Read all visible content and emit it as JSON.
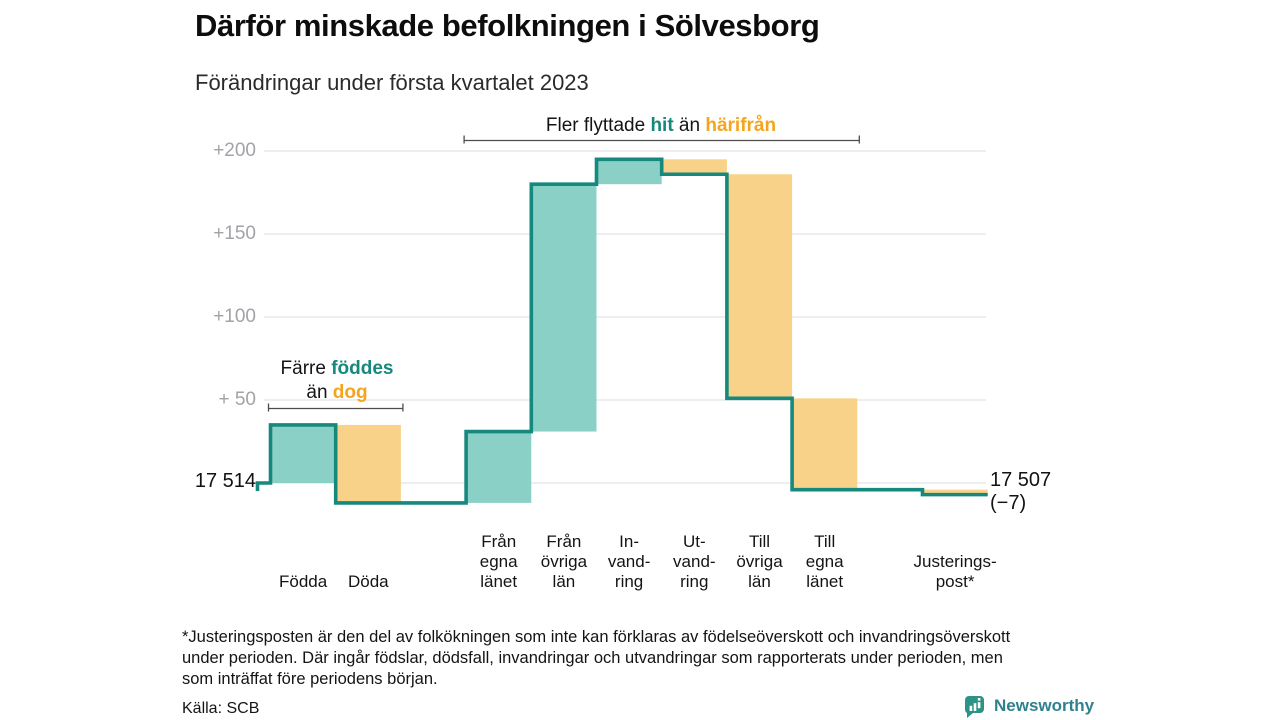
{
  "header": {
    "title": "Därför minskade befolkningen i Sölvesborg",
    "subtitle": "Förändringar under första kvartalet 2023"
  },
  "chart_data": {
    "type": "waterfall",
    "title": "Därför minskade befolkningen i Sölvesborg",
    "subtitle": "Förändringar under första kvartalet 2023",
    "start": {
      "label": "17 514",
      "value": 17514
    },
    "end": {
      "label": "17 507",
      "delta_label": "(−7)",
      "value": 17507,
      "delta": -7
    },
    "y_axis": {
      "ticks": [
        {
          "label": "+200",
          "value": 200
        },
        {
          "label": "+150",
          "value": 150
        },
        {
          "label": "+100",
          "value": 100
        },
        {
          "label": "+ 50",
          "value": 50
        }
      ],
      "baseline_value": 0,
      "range": [
        -15,
        210
      ],
      "grid": true
    },
    "bars": [
      {
        "slot": 0,
        "category": "Födda",
        "label": "Födda",
        "value": 35,
        "cumulative": 35
      },
      {
        "slot": 1,
        "category": "Döda",
        "label": "Döda",
        "value": -47,
        "cumulative": -12
      },
      {
        "slot": 3,
        "category": "Från egna länet",
        "label": "Från\negna\nlänet",
        "value": 43,
        "cumulative": 31
      },
      {
        "slot": 4,
        "category": "Från övriga län",
        "label": "Från\növriga\nlän",
        "value": 149,
        "cumulative": 180
      },
      {
        "slot": 5,
        "category": "Invandring",
        "label": "In-\nvand-\nring",
        "value": 15,
        "cumulative": 195
      },
      {
        "slot": 6,
        "category": "Utvandring",
        "label": "Ut-\nvand-\nring",
        "value": -9,
        "cumulative": 186
      },
      {
        "slot": 7,
        "category": "Till övriga län",
        "label": "Till\növriga\nlän",
        "value": -135,
        "cumulative": 51
      },
      {
        "slot": 8,
        "category": "Till egna länet",
        "label": "Till\negna\nlänet",
        "value": -55,
        "cumulative": -4
      },
      {
        "slot": 10,
        "category": "Justeringspost",
        "label": "Justerings-\npost*",
        "value": -3,
        "cumulative": -7
      }
    ],
    "colors": {
      "positive_fill": "#8BD0C7",
      "negative_fill": "#F9D28A",
      "path_stroke": "#16897E",
      "gridline": "#E9E9EE",
      "axis_text": "#A2A2A7",
      "bracket": "#4d4d4d"
    }
  },
  "annotations": {
    "births": {
      "line1_pre": "Färre ",
      "line1_em": "föddes",
      "line2_pre": "än ",
      "line2_em": "dog",
      "bracket_slots": [
        0,
        1
      ]
    },
    "moves": {
      "pre": "Fler flyttade ",
      "em1": "hit",
      "mid": " än ",
      "em2": "härifrån",
      "bracket_slots": [
        3,
        8
      ]
    }
  },
  "footnote": "*Justeringsposten är den del av folkökningen som inte kan förklaras av födelseöverskott och invandringsöverskott\nunder perioden. Där ingår födslar, dödsfall, invandringar och utvandringar som rapporterats under perioden, men\nsom inträffat före periodens början.",
  "source": "Källa: SCB",
  "logo": {
    "text": "Newsworthy"
  }
}
